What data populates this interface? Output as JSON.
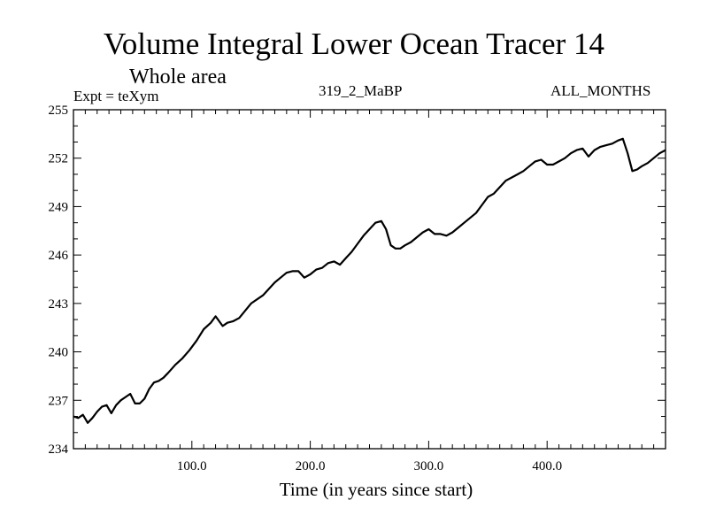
{
  "chart_data": {
    "type": "line",
    "title": "Volume Integral Lower Ocean Tracer 14",
    "subtitle": "Whole area",
    "experiment_label": "Expt = teXym",
    "run_label": "319_2_MaBP",
    "months_label": "ALL_MONTHS",
    "xlabel": "Time (in years since start)",
    "ylabel": "",
    "xlim": [
      0,
      500
    ],
    "ylim": [
      234,
      255
    ],
    "x_ticks": [
      100,
      200,
      300,
      400
    ],
    "x_tick_labels": [
      "100.0",
      "200.0",
      "300.0",
      "400.0"
    ],
    "y_ticks": [
      234,
      237,
      240,
      243,
      246,
      249,
      252,
      255
    ],
    "y_tick_labels": [
      "234",
      "237",
      "240",
      "243",
      "246",
      "249",
      "252",
      "255"
    ],
    "grid": false,
    "series": [
      {
        "color": "#000000",
        "x": [
          0,
          4,
          8,
          12,
          16,
          20,
          24,
          28,
          32,
          36,
          40,
          44,
          48,
          52,
          56,
          60,
          64,
          68,
          72,
          76,
          80,
          86,
          92,
          98,
          104,
          110,
          116,
          120,
          126,
          130,
          135,
          140,
          150,
          160,
          170,
          175,
          180,
          185,
          190,
          195,
          200,
          205,
          210,
          215,
          220,
          225,
          230,
          235,
          240,
          245,
          250,
          255,
          260,
          264,
          268,
          272,
          276,
          280,
          285,
          290,
          295,
          300,
          305,
          310,
          315,
          320,
          325,
          330,
          335,
          340,
          345,
          350,
          355,
          360,
          365,
          370,
          375,
          380,
          385,
          390,
          395,
          400,
          405,
          410,
          415,
          420,
          425,
          430,
          435,
          440,
          445,
          450,
          455,
          460,
          464,
          468,
          472,
          476,
          480,
          485,
          490,
          495,
          500
        ],
        "y": [
          236.0,
          235.9,
          236.1,
          235.6,
          235.9,
          236.3,
          236.6,
          236.7,
          236.2,
          236.7,
          237.0,
          237.2,
          237.4,
          236.8,
          236.8,
          237.1,
          237.7,
          238.1,
          238.2,
          238.4,
          238.7,
          239.2,
          239.6,
          240.1,
          240.7,
          241.4,
          241.8,
          242.2,
          241.6,
          241.8,
          241.9,
          242.1,
          243.0,
          243.5,
          244.3,
          244.6,
          244.9,
          245.0,
          245.0,
          244.6,
          244.8,
          245.1,
          245.2,
          245.5,
          245.6,
          245.4,
          245.8,
          246.2,
          246.7,
          247.2,
          247.6,
          248.0,
          248.1,
          247.6,
          246.6,
          246.4,
          246.4,
          246.6,
          246.8,
          247.1,
          247.4,
          247.6,
          247.3,
          247.3,
          247.2,
          247.4,
          247.7,
          248.0,
          248.3,
          248.6,
          249.1,
          249.6,
          249.8,
          250.2,
          250.6,
          250.8,
          251.0,
          251.2,
          251.5,
          251.8,
          251.9,
          251.6,
          251.6,
          251.8,
          252.0,
          252.3,
          252.5,
          252.6,
          252.1,
          252.5,
          252.7,
          252.8,
          252.9,
          253.1,
          253.2,
          252.3,
          251.2,
          251.3,
          251.5,
          251.7,
          252.0,
          252.3,
          252.5
        ]
      }
    ]
  }
}
